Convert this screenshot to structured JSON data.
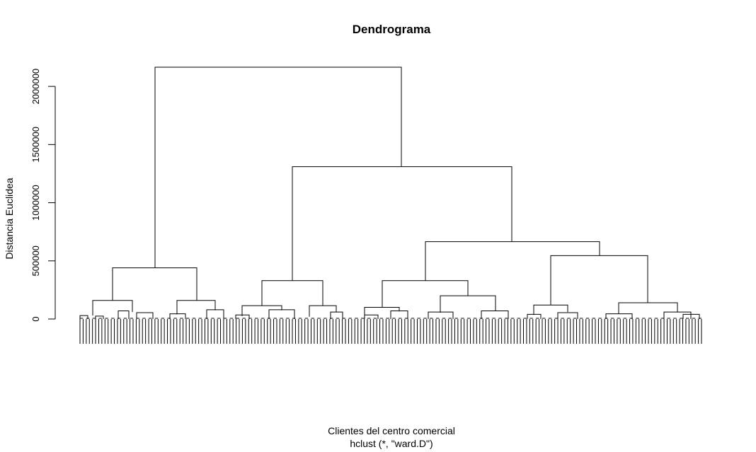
{
  "chart_data": {
    "type": "dendrogram",
    "title": "Dendrograma",
    "xlabel": "Clientes del centro comercial",
    "sublabel": "hclust (*, \"ward.D\")",
    "ylabel": "Distancia Euclidea",
    "ylim": [
      0,
      2200000
    ],
    "yticks": [
      0,
      500000,
      1000000,
      1500000,
      2000000
    ],
    "merges": [
      {
        "height": 2165000,
        "left": "A",
        "right": "B"
      },
      {
        "height": 1310000,
        "left": "B1",
        "right": "B2"
      },
      {
        "height": 665000,
        "left": "B2a",
        "right": "B2b"
      },
      {
        "height": 545000,
        "left": "B2b1",
        "right": "B2b2"
      },
      {
        "height": 440000,
        "left": "A1",
        "right": "A2"
      },
      {
        "height": 330000,
        "left": "B1a",
        "right": "B1b"
      },
      {
        "height": 330000,
        "left": "B2a1",
        "right": "B2a2"
      },
      {
        "height": 200000,
        "left": "B2a2a",
        "right": "B2a2b"
      },
      {
        "height": 160000,
        "left": "A1a",
        "right": "A1b"
      },
      {
        "height": 160000,
        "left": "A2a",
        "right": "A2b"
      },
      {
        "height": 140000,
        "left": "B2b2a",
        "right": "B2b2b"
      },
      {
        "height": 120000,
        "left": "B2b1a",
        "right": "B2b1b"
      },
      {
        "height": 115000,
        "left": "B1a1",
        "right": "B1a2"
      },
      {
        "height": 115000,
        "left": "B1b1",
        "right": "B1b2"
      },
      {
        "height": 100000,
        "left": "B2a1a",
        "right": "B2a1b"
      }
    ],
    "leaf_count": 200
  }
}
